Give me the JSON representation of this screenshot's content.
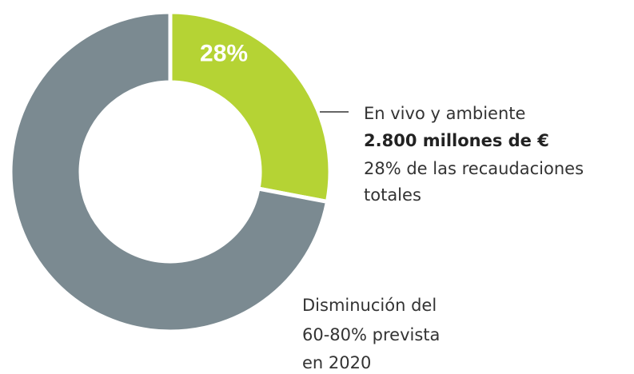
{
  "chart_data": {
    "type": "donut",
    "values": [
      28,
      72
    ],
    "value_labels": [
      "28%",
      null
    ],
    "colors": [
      "#b5d334",
      "#7b8a91"
    ],
    "annotations": [
      "En vivo y ambiente",
      "2.800 millones de €",
      "28% de las recaudaciones",
      "totales",
      "Disminución del",
      "60-80% prevista",
      "en 2020"
    ]
  }
}
